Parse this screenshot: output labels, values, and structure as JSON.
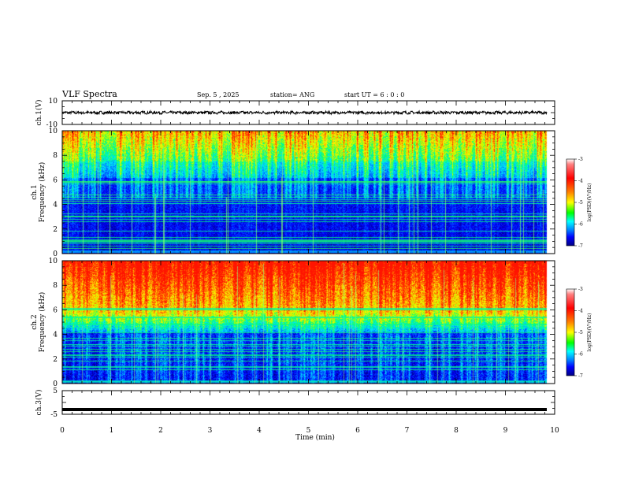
{
  "header": {
    "title": "VLF Spectra",
    "date": "Sep. 5 , 2025",
    "station": "station= ANG",
    "start": "start UT =  6 : 0  : 0"
  },
  "chart_data": [
    {
      "type": "line",
      "name": "ch1-waveform",
      "ylabel": "ch.1(V)",
      "ylim": [
        -10,
        10
      ],
      "yticks": [
        "10",
        "-10"
      ],
      "level": 0.0
    },
    {
      "type": "heatmap",
      "name": "ch1-spectrogram",
      "ylabel": "ch.1\nFrequency (kHz)",
      "ylabel_top": "ch.1",
      "ylabel_bottom": "Frequency (kHz)",
      "ylim": [
        0,
        10
      ],
      "yticks": [
        "0",
        "2",
        "4",
        "6",
        "8",
        "10"
      ],
      "colorbar": {
        "label": "log(PSD)(V²/Hz)",
        "ticks": [
          "-3",
          "-4",
          "-5",
          "-6",
          "-7"
        ],
        "range": [
          -7,
          -3
        ]
      }
    },
    {
      "type": "heatmap",
      "name": "ch2-spectrogram",
      "ylabel": "ch.2\nFrequency (kHz)",
      "ylabel_top": "ch.2",
      "ylabel_bottom": "Frequency (kHz)",
      "ylim": [
        0,
        10
      ],
      "yticks": [
        "0",
        "2",
        "4",
        "6",
        "8",
        "10"
      ],
      "colorbar": {
        "label": "log(PSD)(V²/Hz)",
        "ticks": [
          "-3",
          "-4",
          "-5",
          "-6",
          "-7"
        ],
        "range": [
          -7,
          -3
        ]
      }
    },
    {
      "type": "line",
      "name": "ch3-waveform",
      "ylabel": "ch.3(V)",
      "ylim": [
        -5,
        5
      ],
      "yticks": [
        "5",
        "-5"
      ],
      "level": -3.0
    }
  ],
  "xaxis": {
    "label": "Time  (min)",
    "ticks": [
      "0",
      "1",
      "2",
      "3",
      "4",
      "5",
      "6",
      "7",
      "8",
      "9",
      "10"
    ],
    "range": [
      0,
      10
    ],
    "data_end": 9.84
  },
  "colors": {
    "axis": "#000000",
    "background": "#ffffff"
  }
}
